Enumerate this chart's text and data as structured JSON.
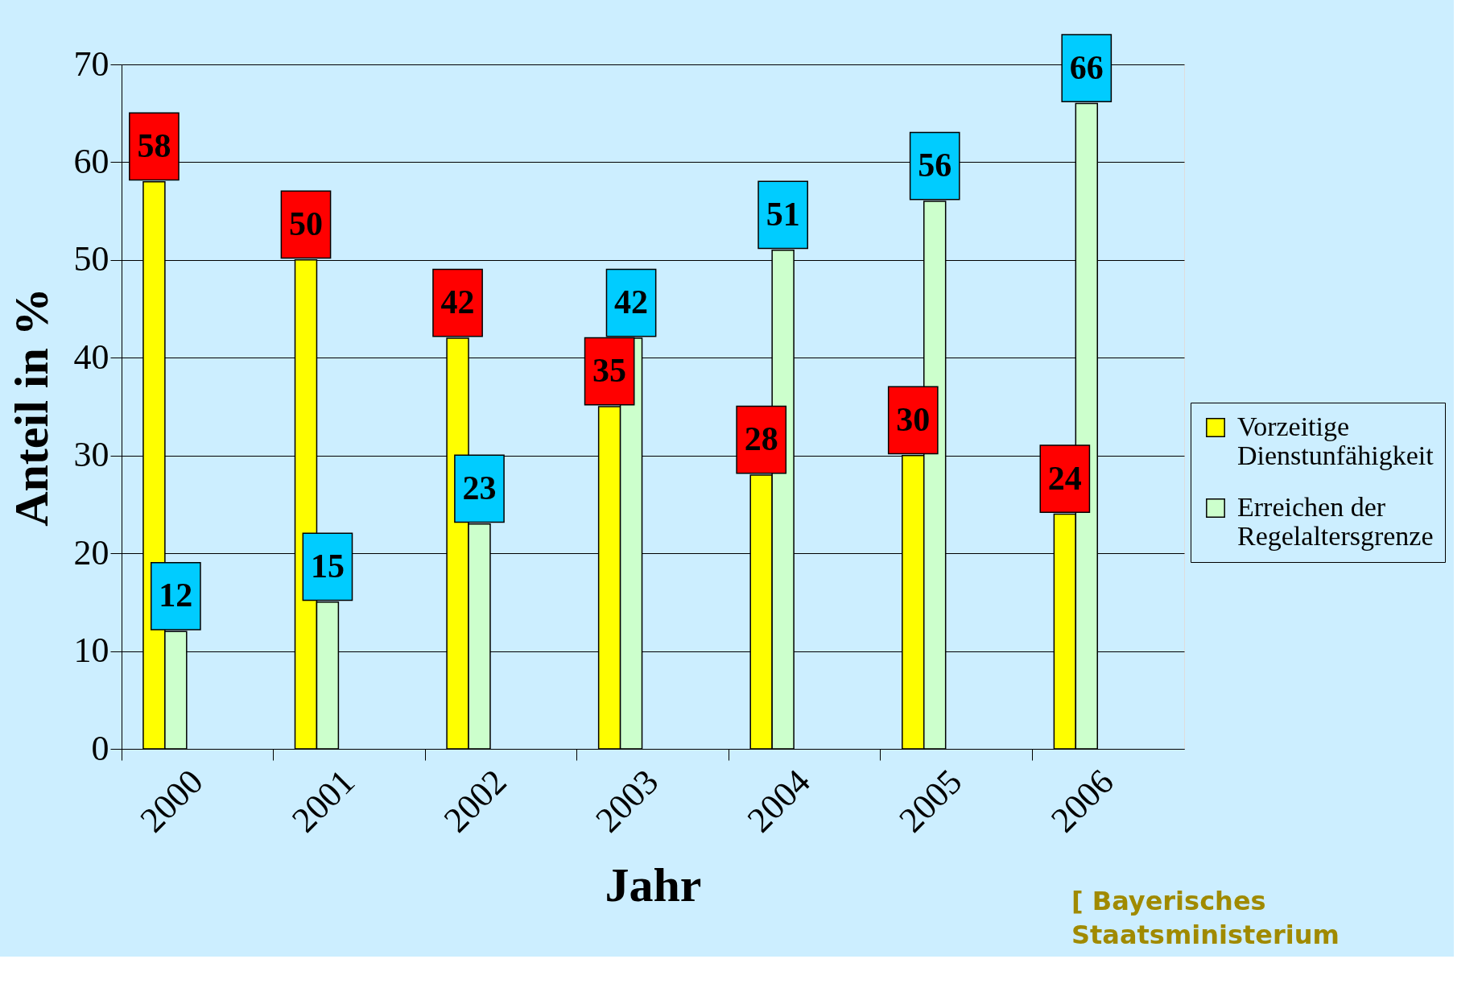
{
  "chart_data": {
    "type": "bar",
    "xlabel": "Jahr",
    "ylabel": "Anteil in %",
    "categories": [
      "2000",
      "2001",
      "2002",
      "2003",
      "2004",
      "2005",
      "2006"
    ],
    "series": [
      {
        "name": "Vorzeitige Dienstunfähigkeit",
        "color": "#ffff00",
        "values": [
          58,
          50,
          42,
          35,
          28,
          30,
          24
        ]
      },
      {
        "name": "Erreichen der Regelaltersgrenze",
        "color": "#ccffcc",
        "values": [
          12,
          15,
          23,
          42,
          51,
          56,
          66
        ]
      }
    ],
    "ylim": [
      0,
      70
    ],
    "yticks": [
      0,
      10,
      20,
      30,
      40,
      50,
      60,
      70
    ],
    "grid": "y",
    "legend": "right",
    "data_labels": true,
    "annotations": [
      "[ Bayerisches Staatsministerium"
    ]
  }
}
